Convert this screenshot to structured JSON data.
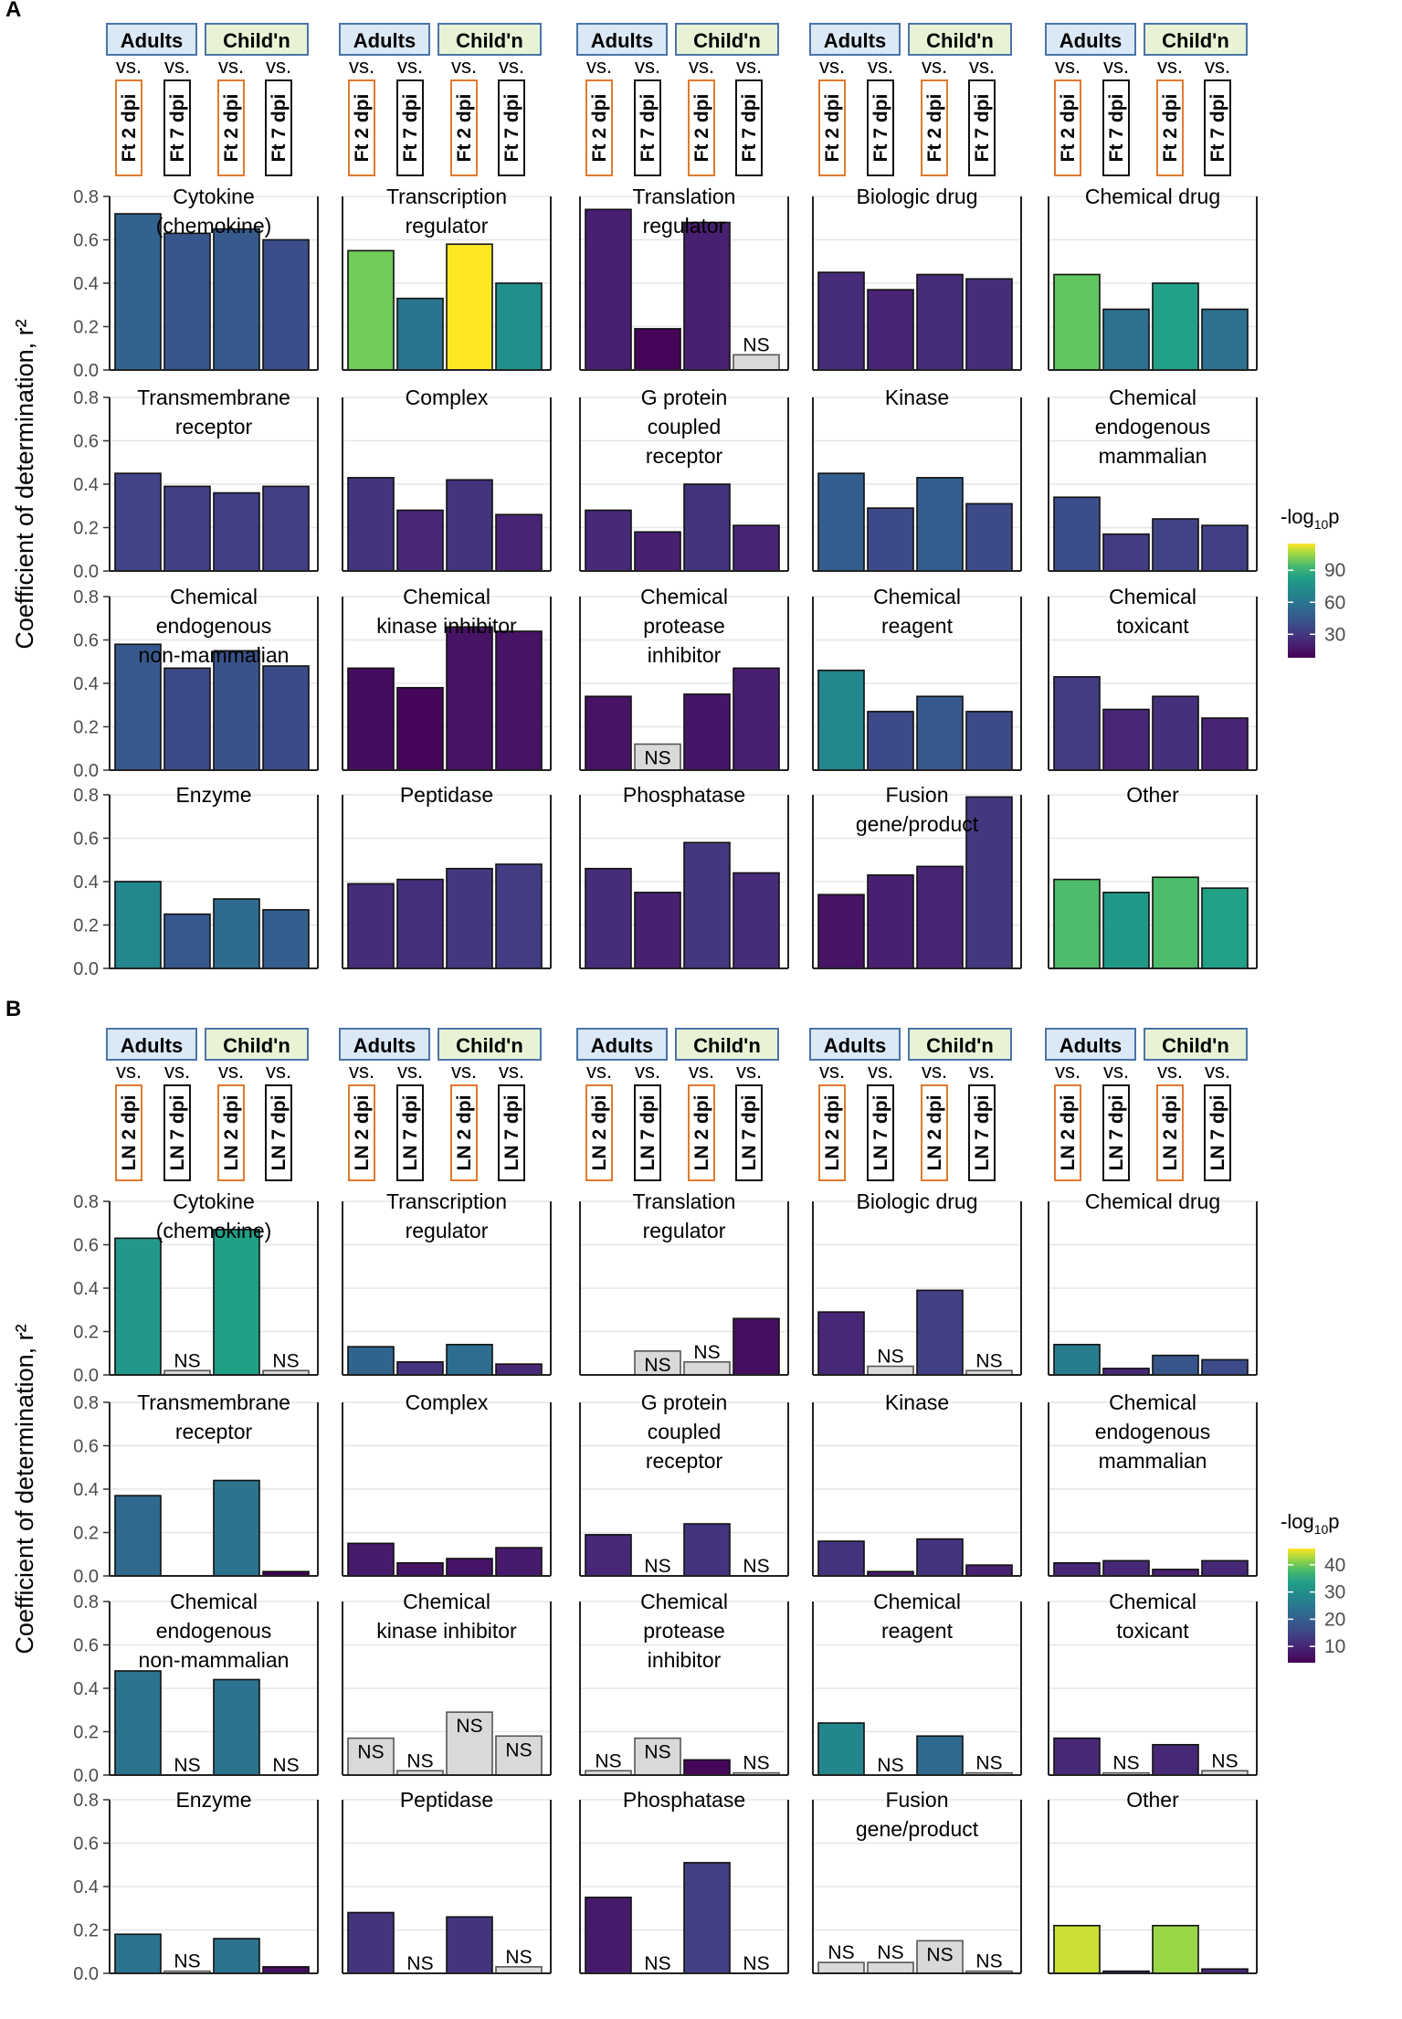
{
  "chart_data": [
    {
      "panel": "A",
      "type": "bar",
      "ylabel": "Coefficient of determination, r²",
      "ylim": [
        0,
        0.8
      ],
      "yticks": [
        "0.0",
        "0.2",
        "0.4",
        "0.6",
        "0.8"
      ],
      "header": {
        "groups": [
          "Adults",
          "Child'n"
        ],
        "vs": "vs.",
        "tissue_labels": [
          "Ft 2 dpi",
          "Ft 7 dpi",
          "Ft 2 dpi",
          "Ft 7 dpi"
        ]
      },
      "legend": {
        "title": "-log",
        "title_sub": "10",
        "title_tail": "p",
        "ticks": [
          30,
          60,
          90
        ],
        "range": [
          8,
          115
        ]
      },
      "na_label": "NS",
      "categories": [
        "Adults vs. Ft 2 dpi",
        "Adults vs. Ft 7 dpi",
        "Child'n vs. Ft 2 dpi",
        "Child'n vs. Ft 7 dpi"
      ],
      "facets": [
        {
          "title": [
            "Cytokine",
            "(chemokine)"
          ],
          "values": [
            0.72,
            0.63,
            0.65,
            0.6
          ],
          "logp": [
            50,
            44,
            46,
            40
          ],
          "ns": [
            false,
            false,
            false,
            false
          ]
        },
        {
          "title": [
            "Transcription",
            "regulator"
          ],
          "values": [
            0.55,
            0.33,
            0.58,
            0.4
          ],
          "logp": [
            100,
            60,
            115,
            75
          ],
          "ns": [
            false,
            false,
            false,
            false
          ]
        },
        {
          "title": [
            "Translation",
            "regulator"
          ],
          "values": [
            0.74,
            0.19,
            0.68,
            0.07
          ],
          "logp": [
            20,
            10,
            20,
            0
          ],
          "ns": [
            false,
            false,
            false,
            true
          ]
        },
        {
          "title": [
            "Biologic drug"
          ],
          "values": [
            0.45,
            0.37,
            0.44,
            0.42
          ],
          "logp": [
            25,
            22,
            25,
            25
          ],
          "ns": [
            false,
            false,
            false,
            false
          ]
        },
        {
          "title": [
            "Chemical drug"
          ],
          "values": [
            0.44,
            0.28,
            0.4,
            0.28
          ],
          "logp": [
            98,
            58,
            85,
            58
          ],
          "ns": [
            false,
            false,
            false,
            false
          ]
        },
        {
          "title": [
            "Transmembrane",
            "receptor"
          ],
          "values": [
            0.45,
            0.39,
            0.36,
            0.39
          ],
          "logp": [
            35,
            33,
            33,
            33
          ],
          "ns": [
            false,
            false,
            false,
            false
          ]
        },
        {
          "title": [
            "Complex"
          ],
          "values": [
            0.43,
            0.28,
            0.42,
            0.26
          ],
          "logp": [
            28,
            23,
            28,
            22
          ],
          "ns": [
            false,
            false,
            false,
            false
          ]
        },
        {
          "title": [
            "G protein",
            "coupled",
            "receptor"
          ],
          "values": [
            0.28,
            0.18,
            0.4,
            0.21
          ],
          "logp": [
            24,
            20,
            28,
            22
          ],
          "ns": [
            false,
            false,
            false,
            false
          ]
        },
        {
          "title": [
            "Kinase"
          ],
          "values": [
            0.45,
            0.29,
            0.43,
            0.31
          ],
          "logp": [
            48,
            38,
            48,
            38
          ],
          "ns": [
            false,
            false,
            false,
            false
          ]
        },
        {
          "title": [
            "Chemical",
            "endogenous",
            "mammalian"
          ],
          "values": [
            0.34,
            0.17,
            0.24,
            0.21
          ],
          "logp": [
            40,
            32,
            35,
            33
          ],
          "ns": [
            false,
            false,
            false,
            false
          ]
        },
        {
          "title": [
            "Chemical",
            "endogenous",
            "non-mammalian"
          ],
          "values": [
            0.58,
            0.47,
            0.55,
            0.48
          ],
          "logp": [
            45,
            38,
            42,
            38
          ],
          "ns": [
            false,
            false,
            false,
            false
          ]
        },
        {
          "title": [
            "Chemical",
            "kinase inhibitor"
          ],
          "values": [
            0.47,
            0.38,
            0.66,
            0.64
          ],
          "logp": [
            12,
            10,
            15,
            15
          ],
          "ns": [
            false,
            false,
            false,
            false
          ]
        },
        {
          "title": [
            "Chemical",
            "protease",
            "inhibitor"
          ],
          "values": [
            0.34,
            0.12,
            0.35,
            0.47
          ],
          "logp": [
            15,
            0,
            16,
            20
          ],
          "ns": [
            false,
            true,
            false,
            false
          ]
        },
        {
          "title": [
            "Chemical",
            "reagent"
          ],
          "values": [
            0.46,
            0.27,
            0.34,
            0.27
          ],
          "logp": [
            70,
            38,
            45,
            38
          ],
          "ns": [
            false,
            false,
            false,
            false
          ]
        },
        {
          "title": [
            "Chemical",
            "toxicant"
          ],
          "values": [
            0.43,
            0.28,
            0.34,
            0.24
          ],
          "logp": [
            32,
            23,
            27,
            22
          ],
          "ns": [
            false,
            false,
            false,
            false
          ]
        },
        {
          "title": [
            "Enzyme"
          ],
          "values": [
            0.4,
            0.25,
            0.32,
            0.27
          ],
          "logp": [
            70,
            45,
            55,
            48
          ],
          "ns": [
            false,
            false,
            false,
            false
          ]
        },
        {
          "title": [
            "Peptidase"
          ],
          "values": [
            0.39,
            0.41,
            0.46,
            0.48
          ],
          "logp": [
            25,
            26,
            30,
            32
          ],
          "ns": [
            false,
            false,
            false,
            false
          ]
        },
        {
          "title": [
            "Phosphatase"
          ],
          "values": [
            0.46,
            0.35,
            0.58,
            0.44
          ],
          "logp": [
            25,
            20,
            30,
            25
          ],
          "ns": [
            false,
            false,
            false,
            false
          ]
        },
        {
          "title": [
            "Fusion",
            "gene/product"
          ],
          "values": [
            0.34,
            0.43,
            0.47,
            0.79
          ],
          "logp": [
            15,
            20,
            22,
            30
          ],
          "ns": [
            false,
            false,
            false,
            false
          ]
        },
        {
          "title": [
            "Other"
          ],
          "values": [
            0.41,
            0.35,
            0.42,
            0.37
          ],
          "logp": [
            95,
            80,
            95,
            85
          ],
          "ns": [
            false,
            false,
            false,
            false
          ]
        }
      ]
    },
    {
      "panel": "B",
      "type": "bar",
      "ylabel": "Coefficient of determination, r²",
      "ylim": [
        0,
        0.8
      ],
      "yticks": [
        "0.0",
        "0.2",
        "0.4",
        "0.6",
        "0.8"
      ],
      "header": {
        "groups": [
          "Adults",
          "Child'n"
        ],
        "vs": "vs.",
        "tissue_labels": [
          "LN 2 dpi",
          "LN 7 dpi",
          "LN 2 dpi",
          "LN 7 dpi"
        ]
      },
      "legend": {
        "title": "-log",
        "title_sub": "10",
        "title_tail": "p",
        "ticks": [
          10,
          20,
          30,
          40
        ],
        "range": [
          4,
          46
        ]
      },
      "na_label": "NS",
      "categories": [
        "Adults vs. LN 2 dpi",
        "Adults vs. LN 7 dpi",
        "Child'n vs. LN 2 dpi",
        "Child'n vs. LN 7 dpi"
      ],
      "facets": [
        {
          "title": [
            "Cytokine",
            "(chemokine)"
          ],
          "values": [
            0.63,
            0.02,
            0.67,
            0.02
          ],
          "logp": [
            32,
            0,
            34,
            0
          ],
          "ns": [
            false,
            true,
            false,
            true
          ]
        },
        {
          "title": [
            "Transcription",
            "regulator"
          ],
          "values": [
            0.13,
            0.06,
            0.14,
            0.05
          ],
          "logp": [
            21,
            12,
            23,
            10
          ],
          "ns": [
            false,
            false,
            false,
            false
          ]
        },
        {
          "title": [
            "Translation",
            "regulator"
          ],
          "values": [
            0.0,
            0.11,
            0.06,
            0.26
          ],
          "logp": [
            0,
            0,
            0,
            6
          ],
          "ns": [
            false,
            true,
            true,
            false
          ]
        },
        {
          "title": [
            "Biologic drug"
          ],
          "values": [
            0.29,
            0.04,
            0.39,
            0.02
          ],
          "logp": [
            10,
            0,
            14,
            0
          ],
          "ns": [
            false,
            true,
            false,
            true
          ]
        },
        {
          "title": [
            "Chemical drug"
          ],
          "values": [
            0.14,
            0.03,
            0.09,
            0.07
          ],
          "logp": [
            26,
            10,
            18,
            16
          ],
          "ns": [
            false,
            false,
            false,
            false
          ]
        },
        {
          "title": [
            "Transmembrane",
            "receptor"
          ],
          "values": [
            0.37,
            0.0,
            0.44,
            0.02
          ],
          "logp": [
            22,
            0,
            24,
            4
          ],
          "ns": [
            false,
            false,
            false,
            false
          ]
        },
        {
          "title": [
            "Complex"
          ],
          "values": [
            0.15,
            0.06,
            0.08,
            0.13
          ],
          "logp": [
            8,
            7,
            7,
            8
          ],
          "ns": [
            false,
            false,
            false,
            false
          ]
        },
        {
          "title": [
            "G protein",
            "coupled",
            "receptor"
          ],
          "values": [
            0.19,
            0.0,
            0.24,
            0.0
          ],
          "logp": [
            10,
            0,
            12,
            0
          ],
          "ns": [
            false,
            true,
            false,
            true
          ]
        },
        {
          "title": [
            "Kinase"
          ],
          "values": [
            0.16,
            0.02,
            0.17,
            0.05
          ],
          "logp": [
            12,
            8,
            12,
            9
          ],
          "ns": [
            false,
            false,
            false,
            false
          ]
        },
        {
          "title": [
            "Chemical",
            "endogenous",
            "mammalian"
          ],
          "values": [
            0.06,
            0.07,
            0.03,
            0.07
          ],
          "logp": [
            10,
            10,
            9,
            10
          ],
          "ns": [
            false,
            false,
            false,
            false
          ]
        },
        {
          "title": [
            "Chemical",
            "endogenous",
            "non-mammalian"
          ],
          "values": [
            0.48,
            0.0,
            0.44,
            0.0
          ],
          "logp": [
            24,
            0,
            24,
            0
          ],
          "ns": [
            false,
            true,
            false,
            true
          ]
        },
        {
          "title": [
            "Chemical",
            "kinase inhibitor"
          ],
          "values": [
            0.17,
            0.02,
            0.29,
            0.18
          ],
          "logp": [
            0,
            0,
            0,
            0
          ],
          "ns": [
            true,
            true,
            true,
            true
          ]
        },
        {
          "title": [
            "Chemical",
            "protease",
            "inhibitor"
          ],
          "values": [
            0.02,
            0.17,
            0.07,
            0.01
          ],
          "logp": [
            0,
            0,
            5,
            0
          ],
          "ns": [
            true,
            true,
            false,
            true
          ]
        },
        {
          "title": [
            "Chemical",
            "reagent"
          ],
          "values": [
            0.24,
            0.0,
            0.18,
            0.01
          ],
          "logp": [
            28,
            0,
            22,
            0
          ],
          "ns": [
            false,
            true,
            false,
            true
          ]
        },
        {
          "title": [
            "Chemical",
            "toxicant"
          ],
          "values": [
            0.17,
            0.01,
            0.14,
            0.02
          ],
          "logp": [
            10,
            0,
            10,
            0
          ],
          "ns": [
            false,
            true,
            false,
            true
          ]
        },
        {
          "title": [
            "Enzyme"
          ],
          "values": [
            0.18,
            0.01,
            0.16,
            0.03
          ],
          "logp": [
            24,
            0,
            24,
            6
          ],
          "ns": [
            false,
            true,
            false,
            false
          ]
        },
        {
          "title": [
            "Peptidase"
          ],
          "values": [
            0.28,
            0.0,
            0.26,
            0.03
          ],
          "logp": [
            12,
            0,
            12,
            0
          ],
          "ns": [
            false,
            true,
            false,
            true
          ]
        },
        {
          "title": [
            "Phosphatase"
          ],
          "values": [
            0.35,
            0.0,
            0.51,
            0.0
          ],
          "logp": [
            8,
            0,
            14,
            0
          ],
          "ns": [
            false,
            true,
            false,
            true
          ]
        },
        {
          "title": [
            "Fusion",
            "gene/product"
          ],
          "values": [
            0.05,
            0.05,
            0.15,
            0.01
          ],
          "logp": [
            0,
            0,
            0,
            0
          ],
          "ns": [
            true,
            true,
            true,
            true
          ]
        },
        {
          "title": [
            "Other"
          ],
          "values": [
            0.22,
            0.01,
            0.22,
            0.02
          ],
          "logp": [
            44,
            10,
            42,
            10
          ],
          "ns": [
            false,
            false,
            false,
            false
          ]
        }
      ]
    }
  ]
}
